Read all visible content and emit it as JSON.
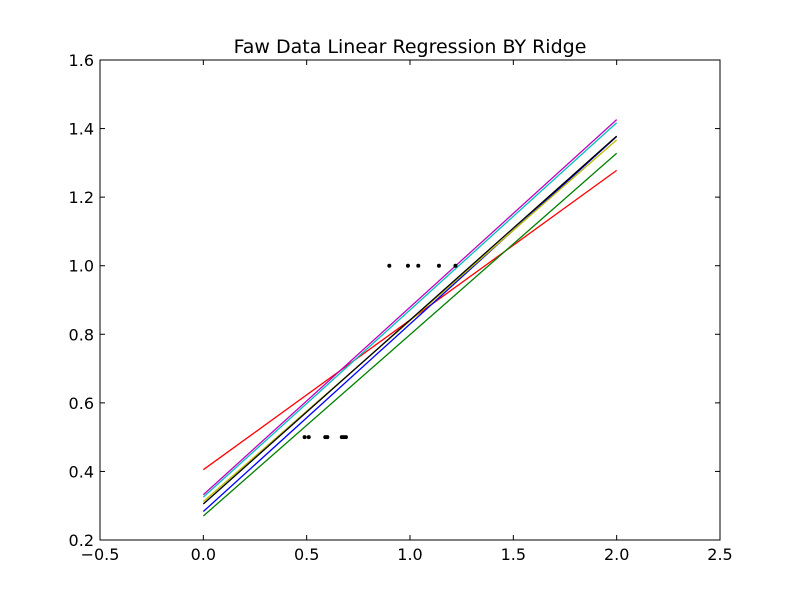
{
  "chart_data": {
    "type": "line",
    "title": "Faw Data Linear Regression BY Ridge",
    "xlabel": "",
    "ylabel": "",
    "xlim": [
      -0.5,
      2.5
    ],
    "ylim": [
      0.2,
      1.6
    ],
    "grid": false,
    "xticks": [
      "−0.5",
      "0.0",
      "0.5",
      "1.0",
      "1.5",
      "2.0",
      "2.5"
    ],
    "yticks": [
      "0.2",
      "0.4",
      "0.6",
      "0.8",
      "1.0",
      "1.2",
      "1.4",
      "1.6"
    ],
    "series": [
      {
        "color": "#ff0000",
        "x": [
          0.0,
          2.0
        ],
        "y": [
          0.405,
          1.278
        ]
      },
      {
        "color": "#008000",
        "x": [
          0.0,
          2.0
        ],
        "y": [
          0.27,
          1.328
        ]
      },
      {
        "color": "#0000ff",
        "x": [
          0.0,
          2.0
        ],
        "y": [
          0.283,
          1.377
        ]
      },
      {
        "color": "#bfbf00",
        "x": [
          0.0,
          2.0
        ],
        "y": [
          0.312,
          1.367
        ]
      },
      {
        "color": "#000000",
        "x": [
          0.0,
          2.0
        ],
        "y": [
          0.305,
          1.378
        ]
      },
      {
        "color": "#00bfbf",
        "x": [
          0.0,
          2.0
        ],
        "y": [
          0.325,
          1.417
        ]
      },
      {
        "color": "#bf00bf",
        "x": [
          0.0,
          2.0
        ],
        "y": [
          0.332,
          1.426
        ]
      }
    ],
    "scatter": {
      "color": "#000000",
      "x": [
        0.49,
        0.51,
        0.59,
        0.6,
        0.67,
        0.68,
        0.69,
        0.9,
        0.99,
        1.04,
        1.14,
        1.22
      ],
      "y": [
        0.5,
        0.5,
        0.5,
        0.5,
        0.5,
        0.5,
        0.5,
        1.0,
        1.0,
        1.0,
        1.0,
        1.0
      ]
    }
  }
}
